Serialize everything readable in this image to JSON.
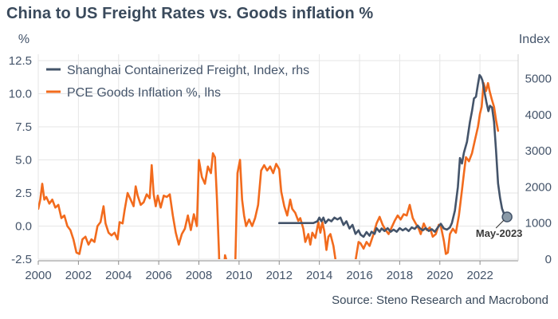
{
  "chart_data": {
    "type": "line",
    "title": "China to US Freight Rates vs. Goods inflation %",
    "source": "Source: Steno Research and Macrobond",
    "y_left": {
      "label": "%",
      "range": [
        -2.5,
        12.5
      ],
      "ticks": [
        "12.5",
        "10.0",
        "7.5",
        "5.0",
        "2.5",
        "0.0",
        "-2.5"
      ]
    },
    "y_right": {
      "label": "Index",
      "range": [
        0,
        5500
      ],
      "ticks": [
        "5000",
        "4000",
        "3000",
        "2000",
        "1000",
        "0"
      ]
    },
    "x_axis": {
      "range": [
        2000,
        2023.9
      ],
      "ticks": [
        "2000",
        "2002",
        "2004",
        "2006",
        "2008",
        "2010",
        "2012",
        "2014",
        "2016",
        "2018",
        "2020",
        "2022"
      ]
    },
    "grid": true,
    "legend_position": "top-left",
    "annotation": {
      "text": "May-2023",
      "x": 2023.35,
      "y": 1170
    },
    "series": [
      {
        "name": "Shanghai Containerized Freight, Index, rhs",
        "axis": "right",
        "color": "#44546a",
        "points": [
          [
            2012.0,
            1000
          ],
          [
            2012.3,
            1000
          ],
          [
            2012.7,
            1000
          ],
          [
            2013.0,
            1000
          ],
          [
            2013.4,
            1000
          ],
          [
            2013.7,
            1000
          ],
          [
            2013.9,
            1050
          ],
          [
            2014.0,
            1150
          ],
          [
            2014.1,
            1050
          ],
          [
            2014.2,
            1150
          ],
          [
            2014.3,
            1000
          ],
          [
            2014.45,
            1100
          ],
          [
            2014.6,
            1050
          ],
          [
            2014.75,
            1150
          ],
          [
            2014.9,
            1100
          ],
          [
            2015.05,
            1150
          ],
          [
            2015.2,
            950
          ],
          [
            2015.35,
            1050
          ],
          [
            2015.5,
            850
          ],
          [
            2015.65,
            950
          ],
          [
            2015.8,
            700
          ],
          [
            2015.95,
            800
          ],
          [
            2016.05,
            680
          ],
          [
            2016.2,
            620
          ],
          [
            2016.35,
            750
          ],
          [
            2016.5,
            650
          ],
          [
            2016.6,
            760
          ],
          [
            2016.75,
            700
          ],
          [
            2016.85,
            860
          ],
          [
            2017.0,
            760
          ],
          [
            2017.1,
            850
          ],
          [
            2017.25,
            780
          ],
          [
            2017.4,
            860
          ],
          [
            2017.55,
            760
          ],
          [
            2017.7,
            820
          ],
          [
            2017.85,
            760
          ],
          [
            2018.0,
            860
          ],
          [
            2018.15,
            800
          ],
          [
            2018.3,
            850
          ],
          [
            2018.45,
            780
          ],
          [
            2018.6,
            880
          ],
          [
            2018.75,
            840
          ],
          [
            2018.9,
            930
          ],
          [
            2019.0,
            860
          ],
          [
            2019.15,
            800
          ],
          [
            2019.3,
            860
          ],
          [
            2019.45,
            780
          ],
          [
            2019.6,
            830
          ],
          [
            2019.75,
            760
          ],
          [
            2019.9,
            880
          ],
          [
            2020.05,
            980
          ],
          [
            2020.2,
            850
          ],
          [
            2020.35,
            820
          ],
          [
            2020.5,
            880
          ],
          [
            2020.6,
            1000
          ],
          [
            2020.75,
            1350
          ],
          [
            2020.9,
            2000
          ],
          [
            2021.0,
            2800
          ],
          [
            2021.1,
            2650
          ],
          [
            2021.2,
            2950
          ],
          [
            2021.35,
            3250
          ],
          [
            2021.5,
            3800
          ],
          [
            2021.6,
            4100
          ],
          [
            2021.7,
            4450
          ],
          [
            2021.8,
            4500
          ],
          [
            2021.9,
            4850
          ],
          [
            2021.98,
            5100
          ],
          [
            2022.05,
            5050
          ],
          [
            2022.12,
            4950
          ],
          [
            2022.2,
            4700
          ],
          [
            2022.32,
            4350
          ],
          [
            2022.42,
            4100
          ],
          [
            2022.5,
            4250
          ],
          [
            2022.6,
            4200
          ],
          [
            2022.7,
            3800
          ],
          [
            2022.8,
            3000
          ],
          [
            2022.9,
            2100
          ],
          [
            2023.0,
            1700
          ],
          [
            2023.1,
            1400
          ],
          [
            2023.2,
            1250
          ],
          [
            2023.35,
            1170
          ]
        ]
      },
      {
        "name": "PCE Goods Inflation %, lhs",
        "axis": "left",
        "color": "#f26b1d",
        "points": [
          [
            2000.0,
            1.3
          ],
          [
            2000.1,
            2.0
          ],
          [
            2000.2,
            3.2
          ],
          [
            2000.3,
            2.0
          ],
          [
            2000.4,
            2.2
          ],
          [
            2000.55,
            1.7
          ],
          [
            2000.7,
            2.0
          ],
          [
            2000.85,
            1.4
          ],
          [
            2001.0,
            1.6
          ],
          [
            2001.15,
            0.6
          ],
          [
            2001.3,
            0.8
          ],
          [
            2001.45,
            0.0
          ],
          [
            2001.6,
            -0.3
          ],
          [
            2001.75,
            -1.0
          ],
          [
            2001.9,
            -2.0
          ],
          [
            2002.05,
            -2.1
          ],
          [
            2002.2,
            -1.0
          ],
          [
            2002.35,
            -0.8
          ],
          [
            2002.5,
            -1.4
          ],
          [
            2002.65,
            -1.0
          ],
          [
            2002.8,
            -1.2
          ],
          [
            2002.95,
            0.0
          ],
          [
            2003.1,
            0.3
          ],
          [
            2003.25,
            1.5
          ],
          [
            2003.35,
            0.2
          ],
          [
            2003.5,
            -0.5
          ],
          [
            2003.65,
            -0.7
          ],
          [
            2003.8,
            -0.5
          ],
          [
            2003.95,
            -1.0
          ],
          [
            2004.05,
            0.3
          ],
          [
            2004.2,
            0.2
          ],
          [
            2004.3,
            1.2
          ],
          [
            2004.45,
            2.5
          ],
          [
            2004.6,
            2.0
          ],
          [
            2004.75,
            1.5
          ],
          [
            2004.85,
            3.0
          ],
          [
            2004.95,
            2.3
          ],
          [
            2005.1,
            1.6
          ],
          [
            2005.25,
            1.8
          ],
          [
            2005.4,
            2.4
          ],
          [
            2005.55,
            2.1
          ],
          [
            2005.65,
            4.6
          ],
          [
            2005.75,
            2.4
          ],
          [
            2005.85,
            1.5
          ],
          [
            2005.95,
            2.3
          ],
          [
            2006.1,
            1.4
          ],
          [
            2006.25,
            2.3
          ],
          [
            2006.4,
            2.2
          ],
          [
            2006.55,
            2.4
          ],
          [
            2006.7,
            0.8
          ],
          [
            2006.85,
            -0.5
          ],
          [
            2007.0,
            -1.4
          ],
          [
            2007.15,
            -0.6
          ],
          [
            2007.3,
            -0.2
          ],
          [
            2007.45,
            0.8
          ],
          [
            2007.6,
            -0.3
          ],
          [
            2007.75,
            0.9
          ],
          [
            2007.9,
            0.0
          ],
          [
            2008.0,
            5.0
          ],
          [
            2008.15,
            3.7
          ],
          [
            2008.3,
            3.2
          ],
          [
            2008.45,
            4.5
          ],
          [
            2008.6,
            4.0
          ],
          [
            2008.7,
            5.5
          ],
          [
            2008.8,
            5.2
          ],
          [
            2008.9,
            2.0
          ],
          [
            2009.0,
            -2.0
          ],
          [
            2009.05,
            -5.0
          ],
          [
            2009.15,
            -5.0
          ],
          [
            2009.3,
            -2.2
          ],
          [
            2009.45,
            -3.0
          ],
          [
            2009.55,
            -5.0
          ],
          [
            2009.7,
            -5.0
          ],
          [
            2009.82,
            -2.5
          ],
          [
            2009.92,
            4.0
          ],
          [
            2010.05,
            5.0
          ],
          [
            2010.15,
            2.0
          ],
          [
            2010.25,
            0.8
          ],
          [
            2010.35,
            0.0
          ],
          [
            2010.5,
            0.5
          ],
          [
            2010.65,
            0.0
          ],
          [
            2010.8,
            0.6
          ],
          [
            2010.95,
            1.6
          ],
          [
            2011.1,
            4.2
          ],
          [
            2011.25,
            4.6
          ],
          [
            2011.4,
            4.2
          ],
          [
            2011.55,
            4.5
          ],
          [
            2011.7,
            4.0
          ],
          [
            2011.85,
            4.7
          ],
          [
            2012.0,
            4.3
          ],
          [
            2012.1,
            2.6
          ],
          [
            2012.25,
            1.5
          ],
          [
            2012.4,
            0.8
          ],
          [
            2012.55,
            2.0
          ],
          [
            2012.65,
            1.3
          ],
          [
            2012.8,
            1.0
          ],
          [
            2012.95,
            0.4
          ],
          [
            2013.05,
            0.6
          ],
          [
            2013.2,
            -0.2
          ],
          [
            2013.3,
            -1.2
          ],
          [
            2013.45,
            -0.6
          ],
          [
            2013.55,
            -1.4
          ],
          [
            2013.65,
            -0.5
          ],
          [
            2013.8,
            -0.9
          ],
          [
            2013.95,
            0.3
          ],
          [
            2014.05,
            -0.5
          ],
          [
            2014.15,
            0.3
          ],
          [
            2014.25,
            -0.4
          ],
          [
            2014.35,
            -1.8
          ],
          [
            2014.45,
            -0.8
          ],
          [
            2014.55,
            -0.6
          ],
          [
            2014.7,
            -1.5
          ],
          [
            2014.85,
            -3.0
          ],
          [
            2014.95,
            -3.4
          ],
          [
            2015.05,
            -3.3
          ],
          [
            2015.2,
            -2.6
          ],
          [
            2015.3,
            -3.2
          ],
          [
            2015.45,
            -2.9
          ],
          [
            2015.55,
            -3.2
          ],
          [
            2015.65,
            -2.6
          ],
          [
            2015.8,
            -2.6
          ],
          [
            2015.95,
            -1.2
          ],
          [
            2016.05,
            -1.3
          ],
          [
            2016.2,
            -1.7
          ],
          [
            2016.35,
            -1.2
          ],
          [
            2016.5,
            -1.5
          ],
          [
            2016.7,
            -0.6
          ],
          [
            2016.85,
            0.2
          ],
          [
            2017.0,
            0.7
          ],
          [
            2017.15,
            0.1
          ],
          [
            2017.3,
            -0.3
          ],
          [
            2017.45,
            -0.6
          ],
          [
            2017.6,
            -0.1
          ],
          [
            2017.75,
            0.4
          ],
          [
            2017.9,
            0.8
          ],
          [
            2018.05,
            0.5
          ],
          [
            2018.2,
            0.9
          ],
          [
            2018.35,
            0.8
          ],
          [
            2018.5,
            1.6
          ],
          [
            2018.65,
            0.6
          ],
          [
            2018.8,
            0.2
          ],
          [
            2018.95,
            -0.2
          ],
          [
            2019.05,
            -0.6
          ],
          [
            2019.2,
            0.2
          ],
          [
            2019.35,
            -0.3
          ],
          [
            2019.5,
            -0.1
          ],
          [
            2019.65,
            -0.8
          ],
          [
            2019.8,
            -0.6
          ],
          [
            2019.95,
            0.1
          ],
          [
            2020.05,
            0.0
          ],
          [
            2020.2,
            -1.1
          ],
          [
            2020.3,
            -2.1
          ],
          [
            2020.4,
            -2.0
          ],
          [
            2020.5,
            -0.6
          ],
          [
            2020.65,
            -0.2
          ],
          [
            2020.8,
            -0.5
          ],
          [
            2020.95,
            0.8
          ],
          [
            2021.1,
            2.7
          ],
          [
            2021.2,
            4.0
          ],
          [
            2021.3,
            5.2
          ],
          [
            2021.45,
            4.9
          ],
          [
            2021.6,
            5.5
          ],
          [
            2021.75,
            6.5
          ],
          [
            2021.9,
            7.5
          ],
          [
            2022.0,
            8.5
          ],
          [
            2022.08,
            9.0
          ],
          [
            2022.18,
            10.8
          ],
          [
            2022.3,
            10.2
          ],
          [
            2022.4,
            10.8
          ],
          [
            2022.48,
            10.2
          ],
          [
            2022.58,
            9.6
          ],
          [
            2022.7,
            9.0
          ],
          [
            2022.8,
            8.0
          ],
          [
            2022.9,
            7.2
          ]
        ]
      }
    ]
  }
}
